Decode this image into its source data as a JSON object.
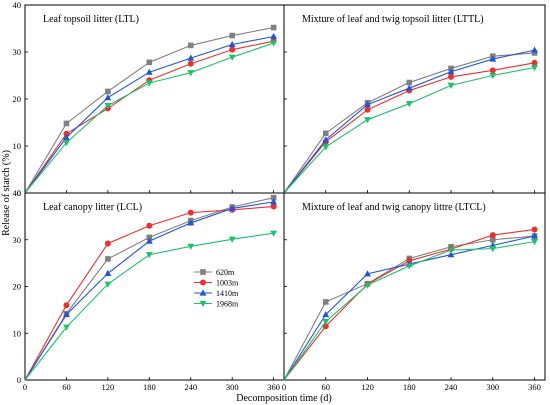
{
  "chart_data": {
    "type": "line",
    "xlabel": "Decomposition time (d)",
    "ylabel": "Release of starch (%)",
    "x_ticks": [
      "0",
      "60",
      "120",
      "180",
      "240",
      "300",
      "360"
    ],
    "y_ticks": [
      "0",
      "10",
      "20",
      "30",
      "40"
    ],
    "xlim": [
      0,
      375
    ],
    "ylim": [
      0,
      40
    ],
    "legend": {
      "placement": "center (inside Leaf canopy litter panel)",
      "entries": [
        "620m",
        "1003m",
        "1410m",
        "1968m"
      ]
    },
    "series_styles": [
      {
        "name": "620m",
        "color": "#808080",
        "marker": "square"
      },
      {
        "name": "1003m",
        "color": "#e8322f",
        "marker": "circle"
      },
      {
        "name": "1410m",
        "color": "#2254d6",
        "marker": "triangle-up"
      },
      {
        "name": "1968m",
        "color": "#1fc06a",
        "marker": "triangle-down"
      }
    ],
    "panels": [
      {
        "title": "Leaf topsoil litter (LTL)",
        "x": [
          0,
          60,
          120,
          180,
          240,
          300,
          360
        ],
        "series": [
          {
            "name": "620m",
            "values": [
              0,
              14.8,
              21.6,
              27.8,
              31.4,
              33.5,
              35.2
            ]
          },
          {
            "name": "1003m",
            "values": [
              0,
              12.6,
              18.0,
              24.0,
              27.5,
              30.5,
              32.3
            ]
          },
          {
            "name": "1410m",
            "values": [
              0,
              11.8,
              20.3,
              25.7,
              28.7,
              31.6,
              33.3
            ]
          },
          {
            "name": "1968m",
            "values": [
              0,
              10.7,
              18.6,
              23.4,
              25.6,
              28.9,
              31.9
            ]
          }
        ]
      },
      {
        "title": "Mixture of leaf and twig topsoil litter (LTTL)",
        "x": [
          0,
          60,
          120,
          180,
          240,
          300,
          360
        ],
        "series": [
          {
            "name": "620m",
            "values": [
              0,
              12.7,
              19.2,
              23.5,
              26.5,
              29.1,
              29.8
            ]
          },
          {
            "name": "1003m",
            "values": [
              0,
              10.9,
              17.7,
              21.8,
              24.7,
              26.1,
              27.7
            ]
          },
          {
            "name": "1410m",
            "values": [
              0,
              11.3,
              18.8,
              22.3,
              25.8,
              28.5,
              30.4
            ]
          },
          {
            "name": "1968m",
            "values": [
              0,
              9.8,
              15.6,
              19.0,
              22.9,
              25.0,
              26.7
            ]
          }
        ]
      },
      {
        "title": "Leaf canopy litter (LCL)",
        "x": [
          0,
          60,
          120,
          180,
          240,
          300,
          360
        ],
        "series": [
          {
            "name": "620m",
            "values": [
              0,
              14.2,
              25.9,
              30.5,
              34.1,
              37.0,
              39.0
            ]
          },
          {
            "name": "1003m",
            "values": [
              0,
              16.0,
              29.2,
              33.0,
              35.8,
              36.4,
              37.1
            ]
          },
          {
            "name": "1410m",
            "values": [
              0,
              14.0,
              22.8,
              29.7,
              33.6,
              36.7,
              38.1
            ]
          },
          {
            "name": "1968m",
            "values": [
              0,
              11.3,
              20.5,
              26.8,
              28.6,
              30.1,
              31.4
            ]
          }
        ]
      },
      {
        "title": "Mixture of leaf and twig canopy littre (LTCL)",
        "x": [
          0,
          60,
          120,
          180,
          240,
          300,
          360
        ],
        "series": [
          {
            "name": "620m",
            "values": [
              0,
              16.7,
              20.6,
              26.0,
              28.5,
              30.0,
              30.8
            ]
          },
          {
            "name": "1003m",
            "values": [
              0,
              11.5,
              20.5,
              25.5,
              28.0,
              31.0,
              32.2
            ]
          },
          {
            "name": "1410m",
            "values": [
              0,
              14.0,
              22.7,
              24.8,
              26.8,
              28.8,
              30.8
            ]
          },
          {
            "name": "1968m",
            "values": [
              0,
              12.5,
              20.3,
              24.4,
              27.8,
              28.1,
              29.6
            ]
          }
        ]
      }
    ]
  }
}
